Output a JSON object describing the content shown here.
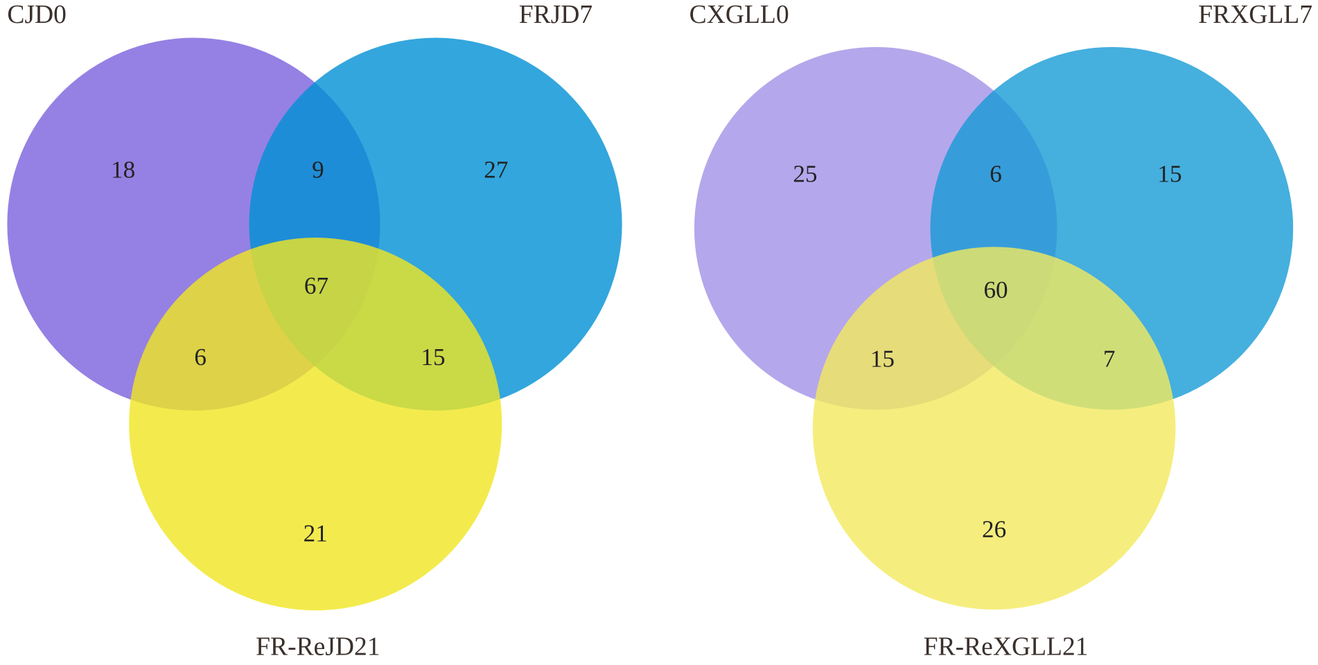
{
  "chart_data": [
    {
      "type": "venn",
      "sets": [
        {
          "name": "CJD0",
          "color": "#7b62dc"
        },
        {
          "name": "FRJD7",
          "color": "#0090d4"
        },
        {
          "name": "FR-ReJD21",
          "color": "#f0e620"
        }
      ],
      "values": [
        18,
        27,
        21,
        9,
        6,
        15,
        67
      ]
    },
    {
      "type": "venn",
      "sets": [
        {
          "name": "CXGLL0",
          "color": "#a391e6"
        },
        {
          "name": "FRXGLL7",
          "color": "#179bd6"
        },
        {
          "name": "FR-ReXGLL21",
          "color": "#f2ea5e"
        }
      ],
      "values": [
        25,
        15,
        26,
        6,
        15,
        7,
        60
      ]
    }
  ]
}
